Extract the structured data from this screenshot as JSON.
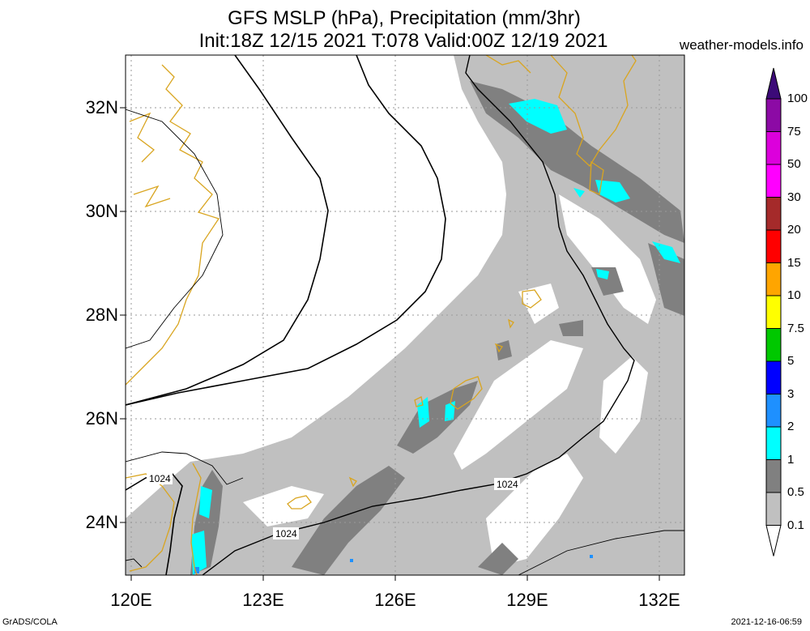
{
  "title_line1": "GFS MSLP (hPa), Precipitation (mm/3hr)",
  "title_line2": "Init:18Z 12/15 2021 T:078 Valid:00Z 12/19 2021",
  "site": "weather-models.info",
  "footer_left": "GrADS/COLA",
  "footer_right": "2021-12-16-06:59",
  "lat_labels": [
    "32N",
    "30N",
    "28N",
    "26N",
    "24N"
  ],
  "lon_labels": [
    "120E",
    "123E",
    "126E",
    "129E",
    "132E"
  ],
  "isobar_labels": [
    "1024",
    "1024",
    "1024"
  ],
  "colorbar": [
    {
      "label": "100",
      "color": "#3c0a78"
    },
    {
      "label": "75",
      "color": "#8c0aa5"
    },
    {
      "label": "50",
      "color": "#dc00dc"
    },
    {
      "label": "30",
      "color": "#ff00ff"
    },
    {
      "label": "20",
      "color": "#a52a2a"
    },
    {
      "label": "15",
      "color": "#ff0000"
    },
    {
      "label": "10",
      "color": "#ffa500"
    },
    {
      "label": "7.5",
      "color": "#ffff00"
    },
    {
      "label": "5",
      "color": "#00c800"
    },
    {
      "label": "3",
      "color": "#0000ff"
    },
    {
      "label": "2",
      "color": "#1e90ff"
    },
    {
      "label": "1",
      "color": "#00ffff"
    },
    {
      "label": "0.5",
      "color": "#808080"
    },
    {
      "label": "0.1",
      "color": "#c0c0c0"
    }
  ],
  "colors": {
    "coast": "#d9a520",
    "light": "#c0c0c0",
    "dark": "#808080",
    "cyan": "#00ffff",
    "blue": "#1e90ff"
  }
}
